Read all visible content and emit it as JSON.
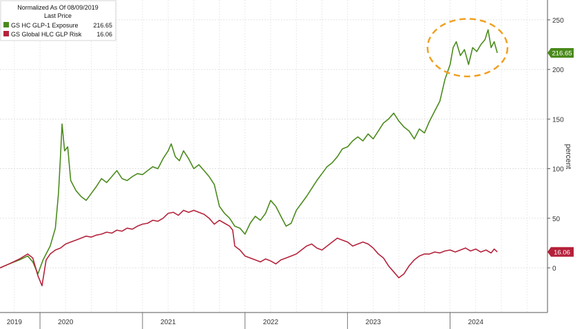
{
  "chart_data": {
    "type": "line",
    "legend": {
      "header_line1": "Normalized As Of 08/09/2019",
      "header_line2": "Last Price"
    },
    "series": [
      {
        "name": "GS HC GLP-1 Exposure",
        "last_value_label": "216.65",
        "color": "#4a8a1c",
        "points": [
          [
            2019.61,
            0
          ],
          [
            2019.7,
            4
          ],
          [
            2019.8,
            8
          ],
          [
            2019.88,
            12
          ],
          [
            2019.93,
            6
          ],
          [
            2019.98,
            -6
          ],
          [
            2020.03,
            8
          ],
          [
            2020.1,
            22
          ],
          [
            2020.15,
            40
          ],
          [
            2020.18,
            75
          ],
          [
            2020.2,
            112
          ],
          [
            2020.215,
            145
          ],
          [
            2020.24,
            118
          ],
          [
            2020.27,
            122
          ],
          [
            2020.3,
            88
          ],
          [
            2020.35,
            78
          ],
          [
            2020.4,
            72
          ],
          [
            2020.45,
            68
          ],
          [
            2020.5,
            75
          ],
          [
            2020.55,
            82
          ],
          [
            2020.6,
            90
          ],
          [
            2020.65,
            86
          ],
          [
            2020.7,
            92
          ],
          [
            2020.75,
            98
          ],
          [
            2020.8,
            90
          ],
          [
            2020.85,
            88
          ],
          [
            2020.9,
            92
          ],
          [
            2020.95,
            95
          ],
          [
            2021.0,
            94
          ],
          [
            2021.05,
            98
          ],
          [
            2021.1,
            102
          ],
          [
            2021.15,
            100
          ],
          [
            2021.2,
            110
          ],
          [
            2021.25,
            118
          ],
          [
            2021.28,
            125
          ],
          [
            2021.32,
            112
          ],
          [
            2021.36,
            108
          ],
          [
            2021.4,
            118
          ],
          [
            2021.45,
            110
          ],
          [
            2021.5,
            100
          ],
          [
            2021.55,
            104
          ],
          [
            2021.6,
            98
          ],
          [
            2021.65,
            92
          ],
          [
            2021.7,
            84
          ],
          [
            2021.75,
            62
          ],
          [
            2021.8,
            55
          ],
          [
            2021.85,
            50
          ],
          [
            2021.9,
            42
          ],
          [
            2021.95,
            40
          ],
          [
            2022.0,
            34
          ],
          [
            2022.05,
            45
          ],
          [
            2022.1,
            52
          ],
          [
            2022.15,
            48
          ],
          [
            2022.2,
            55
          ],
          [
            2022.25,
            68
          ],
          [
            2022.3,
            62
          ],
          [
            2022.35,
            52
          ],
          [
            2022.4,
            42
          ],
          [
            2022.45,
            45
          ],
          [
            2022.5,
            58
          ],
          [
            2022.55,
            65
          ],
          [
            2022.6,
            72
          ],
          [
            2022.65,
            80
          ],
          [
            2022.7,
            88
          ],
          [
            2022.75,
            95
          ],
          [
            2022.8,
            102
          ],
          [
            2022.85,
            106
          ],
          [
            2022.9,
            112
          ],
          [
            2022.95,
            120
          ],
          [
            2023.0,
            122
          ],
          [
            2023.05,
            128
          ],
          [
            2023.1,
            132
          ],
          [
            2023.15,
            128
          ],
          [
            2023.2,
            135
          ],
          [
            2023.25,
            130
          ],
          [
            2023.3,
            138
          ],
          [
            2023.35,
            146
          ],
          [
            2023.4,
            150
          ],
          [
            2023.45,
            156
          ],
          [
            2023.5,
            148
          ],
          [
            2023.55,
            142
          ],
          [
            2023.6,
            138
          ],
          [
            2023.65,
            130
          ],
          [
            2023.7,
            140
          ],
          [
            2023.75,
            136
          ],
          [
            2023.8,
            148
          ],
          [
            2023.85,
            158
          ],
          [
            2023.9,
            168
          ],
          [
            2023.95,
            190
          ],
          [
            2024.0,
            205
          ],
          [
            2024.03,
            222
          ],
          [
            2024.06,
            228
          ],
          [
            2024.1,
            214
          ],
          [
            2024.14,
            220
          ],
          [
            2024.18,
            205
          ],
          [
            2024.22,
            222
          ],
          [
            2024.26,
            218
          ],
          [
            2024.3,
            225
          ],
          [
            2024.34,
            230
          ],
          [
            2024.37,
            240
          ],
          [
            2024.4,
            222
          ],
          [
            2024.43,
            228
          ],
          [
            2024.46,
            216.65
          ]
        ]
      },
      {
        "name": "GS Global HLC GLP Risk",
        "last_value_label": "16.06",
        "color": "#b5213a",
        "points": [
          [
            2019.61,
            0
          ],
          [
            2019.7,
            4
          ],
          [
            2019.8,
            9
          ],
          [
            2019.88,
            14
          ],
          [
            2019.93,
            10
          ],
          [
            2019.98,
            -8
          ],
          [
            2020.02,
            -18
          ],
          [
            2020.06,
            8
          ],
          [
            2020.1,
            14
          ],
          [
            2020.15,
            18
          ],
          [
            2020.2,
            20
          ],
          [
            2020.25,
            24
          ],
          [
            2020.3,
            26
          ],
          [
            2020.35,
            28
          ],
          [
            2020.4,
            30
          ],
          [
            2020.45,
            32
          ],
          [
            2020.5,
            31
          ],
          [
            2020.55,
            33
          ],
          [
            2020.6,
            34
          ],
          [
            2020.65,
            36
          ],
          [
            2020.7,
            35
          ],
          [
            2020.75,
            38
          ],
          [
            2020.8,
            37
          ],
          [
            2020.85,
            40
          ],
          [
            2020.9,
            39
          ],
          [
            2020.95,
            42
          ],
          [
            2021.0,
            44
          ],
          [
            2021.05,
            45
          ],
          [
            2021.1,
            48
          ],
          [
            2021.15,
            47
          ],
          [
            2021.2,
            50
          ],
          [
            2021.25,
            55
          ],
          [
            2021.3,
            56
          ],
          [
            2021.35,
            53
          ],
          [
            2021.4,
            58
          ],
          [
            2021.45,
            56
          ],
          [
            2021.5,
            58
          ],
          [
            2021.55,
            56
          ],
          [
            2021.6,
            54
          ],
          [
            2021.65,
            50
          ],
          [
            2021.7,
            44
          ],
          [
            2021.75,
            48
          ],
          [
            2021.8,
            45
          ],
          [
            2021.85,
            42
          ],
          [
            2021.88,
            38
          ],
          [
            2021.9,
            22
          ],
          [
            2021.95,
            18
          ],
          [
            2022.0,
            12
          ],
          [
            2022.05,
            10
          ],
          [
            2022.1,
            8
          ],
          [
            2022.15,
            6
          ],
          [
            2022.2,
            9
          ],
          [
            2022.25,
            7
          ],
          [
            2022.3,
            4
          ],
          [
            2022.35,
            8
          ],
          [
            2022.4,
            10
          ],
          [
            2022.45,
            12
          ],
          [
            2022.5,
            14
          ],
          [
            2022.55,
            18
          ],
          [
            2022.6,
            22
          ],
          [
            2022.65,
            24
          ],
          [
            2022.7,
            20
          ],
          [
            2022.75,
            18
          ],
          [
            2022.8,
            22
          ],
          [
            2022.85,
            26
          ],
          [
            2022.9,
            30
          ],
          [
            2022.95,
            28
          ],
          [
            2023.0,
            26
          ],
          [
            2023.05,
            22
          ],
          [
            2023.1,
            24
          ],
          [
            2023.15,
            26
          ],
          [
            2023.2,
            24
          ],
          [
            2023.25,
            20
          ],
          [
            2023.3,
            14
          ],
          [
            2023.35,
            10
          ],
          [
            2023.4,
            2
          ],
          [
            2023.45,
            -4
          ],
          [
            2023.5,
            -10
          ],
          [
            2023.55,
            -6
          ],
          [
            2023.6,
            2
          ],
          [
            2023.65,
            8
          ],
          [
            2023.7,
            12
          ],
          [
            2023.75,
            14
          ],
          [
            2023.8,
            14
          ],
          [
            2023.85,
            16
          ],
          [
            2023.9,
            15
          ],
          [
            2023.95,
            17
          ],
          [
            2024.0,
            18
          ],
          [
            2024.05,
            16
          ],
          [
            2024.1,
            18
          ],
          [
            2024.15,
            20
          ],
          [
            2024.2,
            17
          ],
          [
            2024.25,
            19
          ],
          [
            2024.3,
            16
          ],
          [
            2024.35,
            18
          ],
          [
            2024.4,
            15
          ],
          [
            2024.43,
            19
          ],
          [
            2024.46,
            16.06
          ]
        ]
      }
    ],
    "x_ticks": [
      {
        "label": "2019",
        "x": 2019.75
      },
      {
        "label": "2020",
        "x": 2020.25
      },
      {
        "label": "2021",
        "x": 2021.25
      },
      {
        "label": "2022",
        "x": 2022.25
      },
      {
        "label": "2023",
        "x": 2023.25
      },
      {
        "label": "2024",
        "x": 2024.25
      }
    ],
    "y_ticks": [
      0,
      50,
      100,
      150,
      200,
      250
    ],
    "ylabel": "percent",
    "xlim": [
      2019.61,
      2024.95
    ],
    "ylim": [
      -45,
      270
    ],
    "grid": true,
    "legend_placement": "top-left",
    "highlight": {
      "shape": "ellipse",
      "color": "#f0a020",
      "center": [
        2024.17,
        222
      ],
      "radius": [
        0.39,
        29
      ]
    }
  }
}
